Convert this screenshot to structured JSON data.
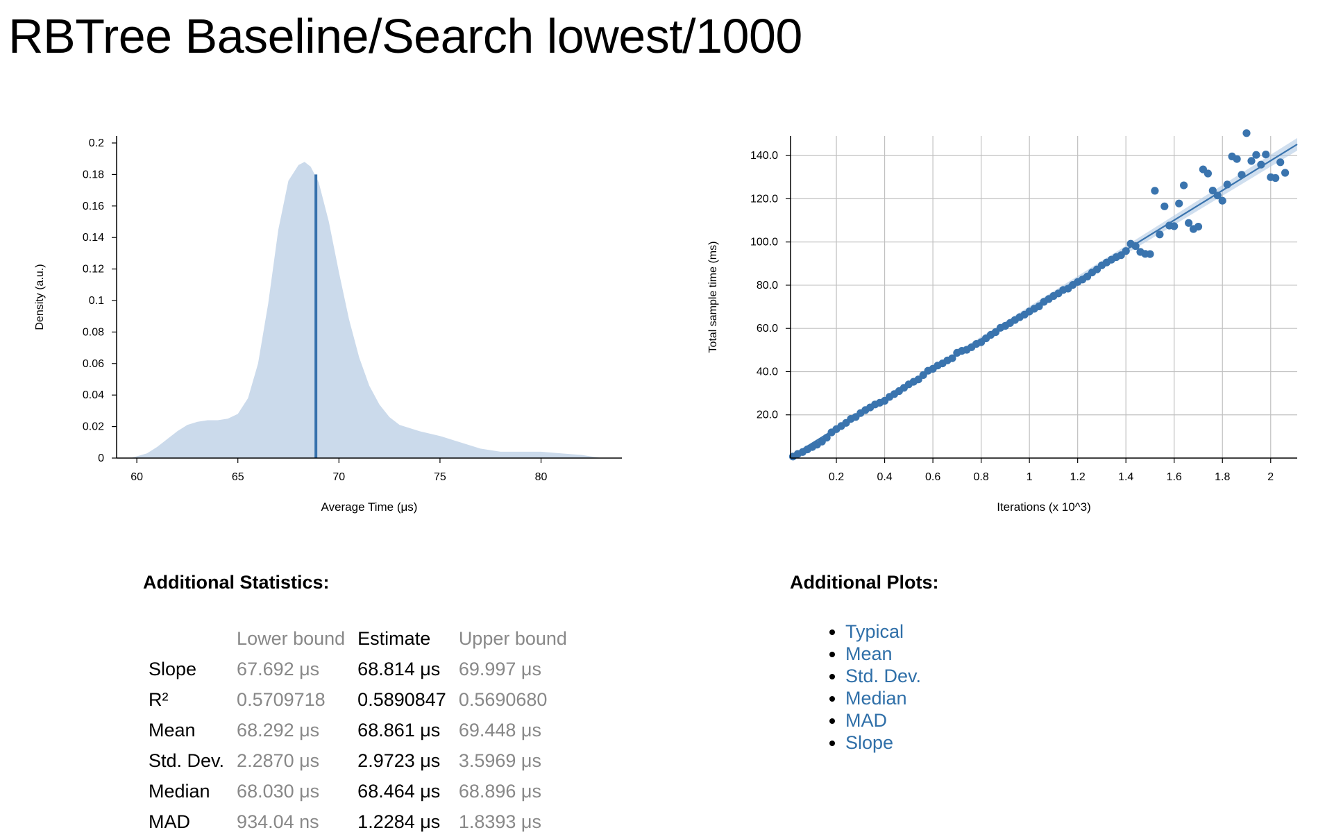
{
  "title": "RBTree Baseline/Search lowest/1000",
  "chart_data": [
    {
      "type": "area",
      "xlabel": "Average Time (μs)",
      "ylabel": "Density (a.u.)",
      "xlim": [
        59,
        84
      ],
      "ylim": [
        0,
        0.2
      ],
      "x_ticks": [
        "60",
        "65",
        "70",
        "75",
        "80"
      ],
      "y_ticks": [
        "0",
        "0.02",
        "0.04",
        "0.06",
        "0.08",
        "0.1",
        "0.12",
        "0.14",
        "0.16",
        "0.18",
        "0.2"
      ],
      "density_x": [
        59.7,
        60.5,
        61,
        61.5,
        62,
        62.5,
        63,
        63.5,
        64,
        64.5,
        65,
        65.5,
        66,
        66.5,
        67,
        67.5,
        68,
        68.3,
        68.6,
        69,
        69.5,
        70,
        70.5,
        71,
        71.5,
        72,
        72.5,
        73,
        74,
        75,
        76,
        77,
        78,
        79,
        80,
        81,
        82,
        83
      ],
      "density_y": [
        0,
        0.003,
        0.007,
        0.012,
        0.017,
        0.021,
        0.023,
        0.024,
        0.024,
        0.025,
        0.028,
        0.038,
        0.06,
        0.098,
        0.145,
        0.176,
        0.186,
        0.188,
        0.185,
        0.175,
        0.15,
        0.118,
        0.088,
        0.064,
        0.046,
        0.034,
        0.026,
        0.021,
        0.017,
        0.014,
        0.01,
        0.006,
        0.004,
        0.004,
        0.004,
        0.003,
        0.002,
        0
      ],
      "estimate": 68.861,
      "colors": {
        "fill": "#cbdaeb",
        "line": "#3771ac"
      }
    },
    {
      "type": "scatter",
      "xlabel": "Iterations (x 10^3)",
      "ylabel": "Total sample time (ms)",
      "xlim": [
        0.01,
        2.11
      ],
      "ylim": [
        0,
        150
      ],
      "grid": true,
      "x_ticks": [
        "0.2",
        "0.4",
        "0.6",
        "0.8",
        "1",
        "1.2",
        "1.4",
        "1.6",
        "1.8",
        "2"
      ],
      "y_ticks": [
        "20.0",
        "40.0",
        "60.0",
        "80.0",
        "100.0",
        "120.0",
        "140.0"
      ],
      "slope_ms_per_1000_iter": 68.814,
      "colors": {
        "points": "#3a74ae",
        "line": "#3a74ae",
        "band": "#a9c4e2"
      },
      "points": [
        [
          0.02,
          0.7
        ],
        [
          0.04,
          1.9
        ],
        [
          0.06,
          2.8
        ],
        [
          0.08,
          4.0
        ],
        [
          0.1,
          5.1
        ],
        [
          0.12,
          6.2
        ],
        [
          0.14,
          7.6
        ],
        [
          0.16,
          9.4
        ],
        [
          0.18,
          11.9
        ],
        [
          0.2,
          13.4
        ],
        [
          0.22,
          14.8
        ],
        [
          0.24,
          16.3
        ],
        [
          0.26,
          18.1
        ],
        [
          0.28,
          19.0
        ],
        [
          0.3,
          20.8
        ],
        [
          0.32,
          22.2
        ],
        [
          0.34,
          23.4
        ],
        [
          0.36,
          24.8
        ],
        [
          0.38,
          25.6
        ],
        [
          0.4,
          26.5
        ],
        [
          0.42,
          28.3
        ],
        [
          0.44,
          29.6
        ],
        [
          0.46,
          31.0
        ],
        [
          0.48,
          32.5
        ],
        [
          0.5,
          34.1
        ],
        [
          0.52,
          35.3
        ],
        [
          0.54,
          36.4
        ],
        [
          0.56,
          38.4
        ],
        [
          0.58,
          40.4
        ],
        [
          0.6,
          41.3
        ],
        [
          0.62,
          42.8
        ],
        [
          0.64,
          43.8
        ],
        [
          0.66,
          45.2
        ],
        [
          0.68,
          46.2
        ],
        [
          0.7,
          48.7
        ],
        [
          0.72,
          49.6
        ],
        [
          0.74,
          50.1
        ],
        [
          0.76,
          51.3
        ],
        [
          0.78,
          52.8
        ],
        [
          0.8,
          53.6
        ],
        [
          0.82,
          55.4
        ],
        [
          0.84,
          57.0
        ],
        [
          0.86,
          58.3
        ],
        [
          0.88,
          60.3
        ],
        [
          0.9,
          61.2
        ],
        [
          0.92,
          62.5
        ],
        [
          0.94,
          63.9
        ],
        [
          0.96,
          65.2
        ],
        [
          0.98,
          66.4
        ],
        [
          1.0,
          67.8
        ],
        [
          1.02,
          69.1
        ],
        [
          1.04,
          70.2
        ],
        [
          1.06,
          72.3
        ],
        [
          1.08,
          73.6
        ],
        [
          1.1,
          75.0
        ],
        [
          1.12,
          76.2
        ],
        [
          1.14,
          77.8
        ],
        [
          1.16,
          78.4
        ],
        [
          1.18,
          80.1
        ],
        [
          1.2,
          81.5
        ],
        [
          1.22,
          82.6
        ],
        [
          1.24,
          84.0
        ],
        [
          1.26,
          85.9
        ],
        [
          1.28,
          87.3
        ],
        [
          1.3,
          89.2
        ],
        [
          1.32,
          90.5
        ],
        [
          1.34,
          91.8
        ],
        [
          1.36,
          93.0
        ],
        [
          1.38,
          93.9
        ],
        [
          1.4,
          95.8
        ],
        [
          1.42,
          99.2
        ],
        [
          1.44,
          98.1
        ],
        [
          1.46,
          95.4
        ],
        [
          1.48,
          94.5
        ],
        [
          1.5,
          94.4
        ],
        [
          1.52,
          123.7
        ],
        [
          1.54,
          103.5
        ],
        [
          1.56,
          116.5
        ],
        [
          1.58,
          107.6
        ],
        [
          1.6,
          107.3
        ],
        [
          1.62,
          117.8
        ],
        [
          1.64,
          126.2
        ],
        [
          1.66,
          108.8
        ],
        [
          1.68,
          106.0
        ],
        [
          1.7,
          107.1
        ],
        [
          1.72,
          133.6
        ],
        [
          1.74,
          131.7
        ],
        [
          1.76,
          123.8
        ],
        [
          1.78,
          121.5
        ],
        [
          1.8,
          119.1
        ],
        [
          1.82,
          126.6
        ],
        [
          1.84,
          139.6
        ],
        [
          1.86,
          138.4
        ],
        [
          1.88,
          131.1
        ],
        [
          1.9,
          150.4
        ],
        [
          1.92,
          137.5
        ],
        [
          1.94,
          140.3
        ],
        [
          1.96,
          135.8
        ],
        [
          1.98,
          140.5
        ],
        [
          2.0,
          130.0
        ],
        [
          2.02,
          129.6
        ],
        [
          2.04,
          136.9
        ],
        [
          2.06,
          132.0
        ]
      ]
    }
  ],
  "statistics": {
    "heading": "Additional Statistics:",
    "columns": [
      "",
      "Lower bound",
      "Estimate",
      "Upper bound"
    ],
    "rows": [
      {
        "name": "Slope",
        "lower": "67.692 μs",
        "estimate": "68.814 μs",
        "upper": "69.997 μs"
      },
      {
        "name": "R²",
        "lower": "0.5709718",
        "estimate": "0.5890847",
        "upper": "0.5690680"
      },
      {
        "name": "Mean",
        "lower": "68.292 μs",
        "estimate": "68.861 μs",
        "upper": "69.448 μs"
      },
      {
        "name": "Std. Dev.",
        "lower": "2.2870 μs",
        "estimate": "2.9723 μs",
        "upper": "3.5969 μs"
      },
      {
        "name": "Median",
        "lower": "68.030 μs",
        "estimate": "68.464 μs",
        "upper": "68.896 μs"
      },
      {
        "name": "MAD",
        "lower": "934.04 ns",
        "estimate": "1.2284 μs",
        "upper": "1.8393 μs"
      }
    ]
  },
  "plots": {
    "heading": "Additional Plots:",
    "links": [
      "Typical",
      "Mean",
      "Std. Dev.",
      "Median",
      "MAD",
      "Slope"
    ]
  }
}
